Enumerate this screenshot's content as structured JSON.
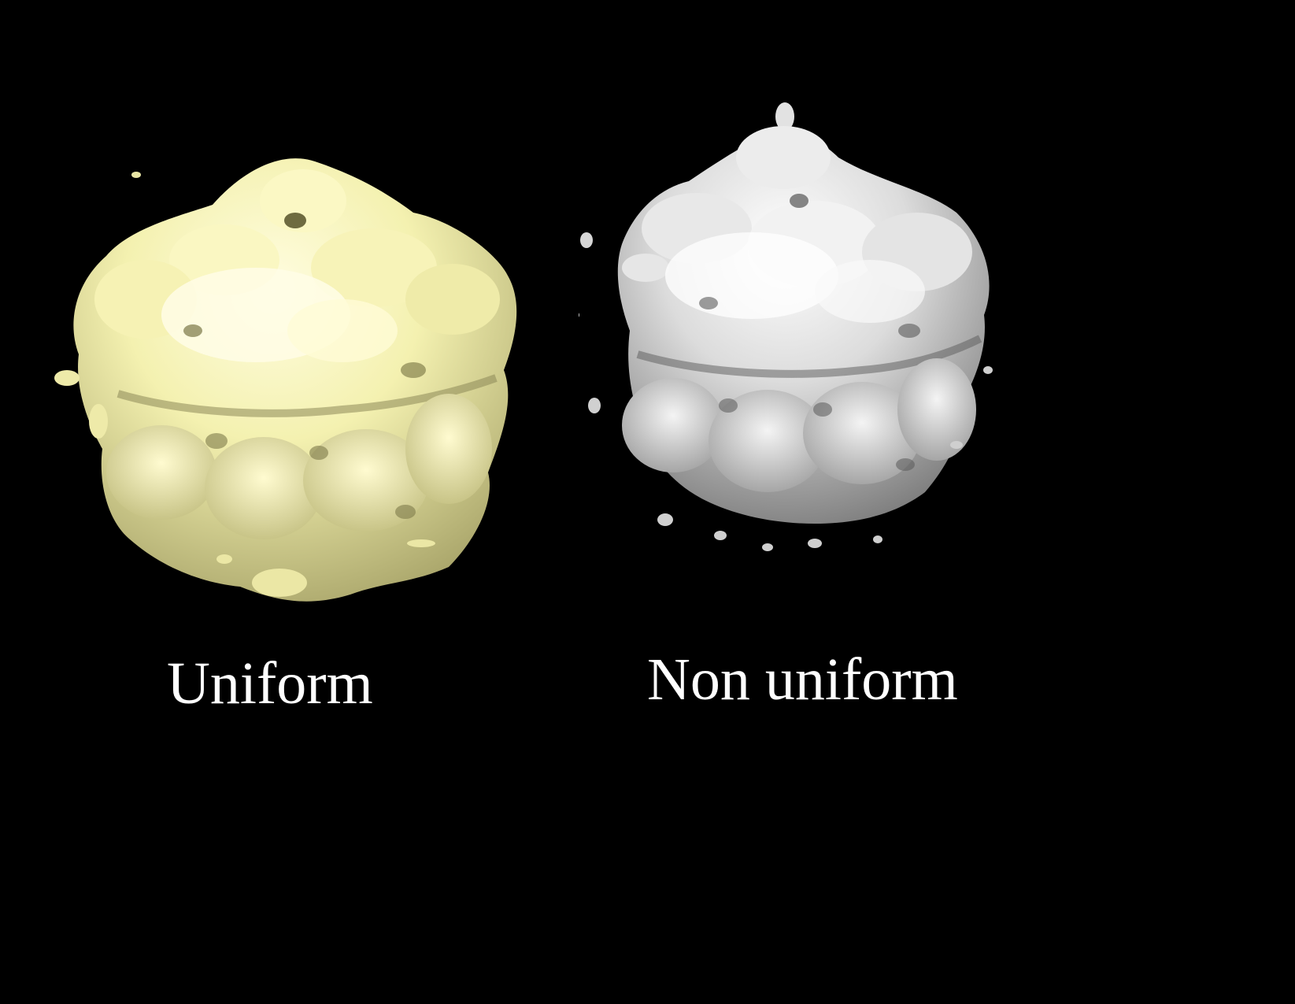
{
  "background_color": "#000000",
  "panels": [
    {
      "label": "Uniform",
      "surface_color": "#f4f1b0",
      "shade_color": "#b9b57a"
    },
    {
      "label": "Non uniform",
      "surface_color": "#e2e2e2",
      "shade_color": "#8e8e8e"
    }
  ]
}
